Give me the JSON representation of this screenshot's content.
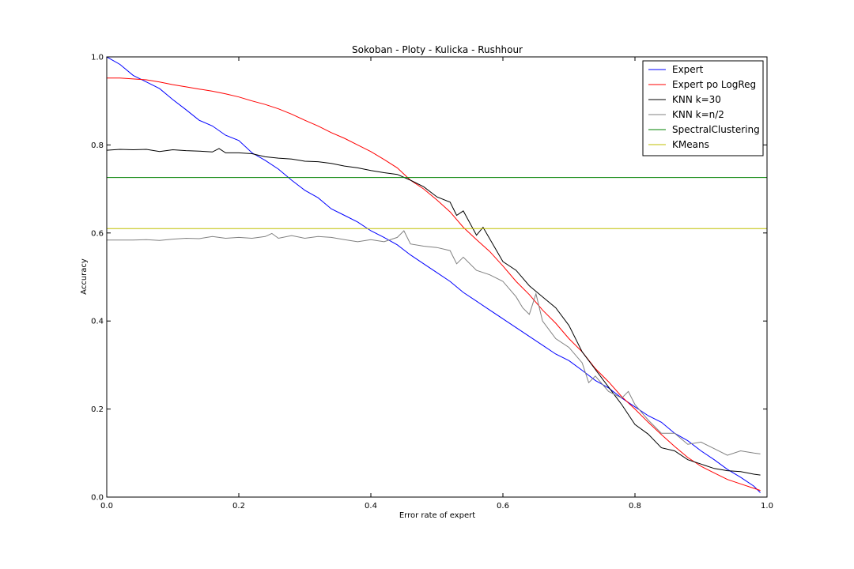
{
  "chart_data": {
    "type": "line",
    "title": "Sokoban - Ploty - Kulicka - Rushhour",
    "xlabel": "Error rate of expert",
    "ylabel": "Accuracy",
    "xlim": [
      0.0,
      1.0
    ],
    "ylim": [
      0.0,
      1.0
    ],
    "xticks": [
      "0.0",
      "0.2",
      "0.4",
      "0.6",
      "0.8",
      "1.0"
    ],
    "yticks": [
      "0.0",
      "0.2",
      "0.4",
      "0.6",
      "0.8",
      "1.0"
    ],
    "grid": false,
    "legend_position": "top-right",
    "series": [
      {
        "name": "Expert",
        "color": "#0000ff",
        "points": [
          [
            0.0,
            1.0
          ],
          [
            0.02,
            0.983
          ],
          [
            0.04,
            0.958
          ],
          [
            0.06,
            0.943
          ],
          [
            0.08,
            0.928
          ],
          [
            0.1,
            0.903
          ],
          [
            0.12,
            0.88
          ],
          [
            0.14,
            0.856
          ],
          [
            0.16,
            0.843
          ],
          [
            0.18,
            0.822
          ],
          [
            0.2,
            0.81
          ],
          [
            0.22,
            0.782
          ],
          [
            0.24,
            0.765
          ],
          [
            0.26,
            0.745
          ],
          [
            0.28,
            0.72
          ],
          [
            0.3,
            0.697
          ],
          [
            0.32,
            0.68
          ],
          [
            0.34,
            0.655
          ],
          [
            0.36,
            0.64
          ],
          [
            0.38,
            0.625
          ],
          [
            0.4,
            0.605
          ],
          [
            0.42,
            0.59
          ],
          [
            0.44,
            0.573
          ],
          [
            0.46,
            0.55
          ],
          [
            0.48,
            0.53
          ],
          [
            0.5,
            0.51
          ],
          [
            0.52,
            0.49
          ],
          [
            0.54,
            0.465
          ],
          [
            0.56,
            0.445
          ],
          [
            0.58,
            0.425
          ],
          [
            0.6,
            0.405
          ],
          [
            0.62,
            0.385
          ],
          [
            0.64,
            0.365
          ],
          [
            0.66,
            0.345
          ],
          [
            0.68,
            0.325
          ],
          [
            0.7,
            0.31
          ],
          [
            0.72,
            0.288
          ],
          [
            0.74,
            0.265
          ],
          [
            0.76,
            0.248
          ],
          [
            0.78,
            0.225
          ],
          [
            0.8,
            0.205
          ],
          [
            0.82,
            0.185
          ],
          [
            0.84,
            0.17
          ],
          [
            0.86,
            0.145
          ],
          [
            0.88,
            0.128
          ],
          [
            0.9,
            0.105
          ],
          [
            0.92,
            0.085
          ],
          [
            0.94,
            0.063
          ],
          [
            0.96,
            0.045
          ],
          [
            0.98,
            0.025
          ],
          [
            0.99,
            0.01
          ]
        ]
      },
      {
        "name": "Expert po LogReg",
        "color": "#ff0000",
        "points": [
          [
            0.0,
            0.952
          ],
          [
            0.02,
            0.952
          ],
          [
            0.04,
            0.95
          ],
          [
            0.06,
            0.948
          ],
          [
            0.08,
            0.943
          ],
          [
            0.1,
            0.937
          ],
          [
            0.12,
            0.932
          ],
          [
            0.14,
            0.927
          ],
          [
            0.16,
            0.922
          ],
          [
            0.18,
            0.916
          ],
          [
            0.2,
            0.909
          ],
          [
            0.22,
            0.9
          ],
          [
            0.24,
            0.892
          ],
          [
            0.26,
            0.882
          ],
          [
            0.28,
            0.87
          ],
          [
            0.3,
            0.856
          ],
          [
            0.32,
            0.843
          ],
          [
            0.34,
            0.828
          ],
          [
            0.36,
            0.815
          ],
          [
            0.38,
            0.8
          ],
          [
            0.4,
            0.785
          ],
          [
            0.42,
            0.767
          ],
          [
            0.44,
            0.748
          ],
          [
            0.46,
            0.72
          ],
          [
            0.48,
            0.7
          ],
          [
            0.5,
            0.675
          ],
          [
            0.52,
            0.648
          ],
          [
            0.54,
            0.613
          ],
          [
            0.56,
            0.585
          ],
          [
            0.58,
            0.558
          ],
          [
            0.6,
            0.525
          ],
          [
            0.62,
            0.49
          ],
          [
            0.64,
            0.46
          ],
          [
            0.66,
            0.425
          ],
          [
            0.68,
            0.395
          ],
          [
            0.7,
            0.36
          ],
          [
            0.72,
            0.33
          ],
          [
            0.74,
            0.292
          ],
          [
            0.76,
            0.262
          ],
          [
            0.78,
            0.228
          ],
          [
            0.8,
            0.2
          ],
          [
            0.82,
            0.17
          ],
          [
            0.84,
            0.142
          ],
          [
            0.86,
            0.115
          ],
          [
            0.88,
            0.09
          ],
          [
            0.9,
            0.07
          ],
          [
            0.92,
            0.055
          ],
          [
            0.94,
            0.04
          ],
          [
            0.96,
            0.03
          ],
          [
            0.98,
            0.02
          ],
          [
            0.99,
            0.015
          ]
        ]
      },
      {
        "name": "KNN k=30",
        "color": "#000000",
        "points": [
          [
            0.0,
            0.788
          ],
          [
            0.02,
            0.79
          ],
          [
            0.04,
            0.789
          ],
          [
            0.06,
            0.79
          ],
          [
            0.08,
            0.785
          ],
          [
            0.1,
            0.789
          ],
          [
            0.12,
            0.787
          ],
          [
            0.14,
            0.786
          ],
          [
            0.16,
            0.784
          ],
          [
            0.17,
            0.792
          ],
          [
            0.18,
            0.782
          ],
          [
            0.2,
            0.782
          ],
          [
            0.22,
            0.78
          ],
          [
            0.24,
            0.773
          ],
          [
            0.26,
            0.77
          ],
          [
            0.28,
            0.768
          ],
          [
            0.3,
            0.763
          ],
          [
            0.32,
            0.762
          ],
          [
            0.34,
            0.758
          ],
          [
            0.36,
            0.752
          ],
          [
            0.38,
            0.748
          ],
          [
            0.4,
            0.742
          ],
          [
            0.42,
            0.737
          ],
          [
            0.44,
            0.733
          ],
          [
            0.46,
            0.72
          ],
          [
            0.48,
            0.705
          ],
          [
            0.5,
            0.682
          ],
          [
            0.52,
            0.67
          ],
          [
            0.53,
            0.64
          ],
          [
            0.54,
            0.65
          ],
          [
            0.56,
            0.595
          ],
          [
            0.57,
            0.613
          ],
          [
            0.6,
            0.535
          ],
          [
            0.62,
            0.515
          ],
          [
            0.64,
            0.48
          ],
          [
            0.66,
            0.455
          ],
          [
            0.68,
            0.43
          ],
          [
            0.7,
            0.39
          ],
          [
            0.72,
            0.33
          ],
          [
            0.74,
            0.29
          ],
          [
            0.76,
            0.25
          ],
          [
            0.78,
            0.21
          ],
          [
            0.8,
            0.165
          ],
          [
            0.82,
            0.143
          ],
          [
            0.84,
            0.112
          ],
          [
            0.86,
            0.105
          ],
          [
            0.88,
            0.085
          ],
          [
            0.9,
            0.075
          ],
          [
            0.92,
            0.065
          ],
          [
            0.94,
            0.06
          ],
          [
            0.96,
            0.058
          ],
          [
            0.98,
            0.052
          ],
          [
            0.99,
            0.05
          ]
        ]
      },
      {
        "name": "KNN k=n/2",
        "color": "#808080",
        "points": [
          [
            0.0,
            0.584
          ],
          [
            0.02,
            0.584
          ],
          [
            0.04,
            0.584
          ],
          [
            0.06,
            0.585
          ],
          [
            0.08,
            0.583
          ],
          [
            0.1,
            0.586
          ],
          [
            0.12,
            0.588
          ],
          [
            0.14,
            0.587
          ],
          [
            0.16,
            0.592
          ],
          [
            0.18,
            0.588
          ],
          [
            0.2,
            0.59
          ],
          [
            0.22,
            0.588
          ],
          [
            0.24,
            0.592
          ],
          [
            0.25,
            0.599
          ],
          [
            0.26,
            0.588
          ],
          [
            0.28,
            0.594
          ],
          [
            0.3,
            0.588
          ],
          [
            0.32,
            0.592
          ],
          [
            0.34,
            0.59
          ],
          [
            0.36,
            0.585
          ],
          [
            0.38,
            0.58
          ],
          [
            0.4,
            0.585
          ],
          [
            0.42,
            0.58
          ],
          [
            0.44,
            0.59
          ],
          [
            0.45,
            0.605
          ],
          [
            0.46,
            0.575
          ],
          [
            0.48,
            0.57
          ],
          [
            0.5,
            0.567
          ],
          [
            0.52,
            0.56
          ],
          [
            0.53,
            0.53
          ],
          [
            0.54,
            0.545
          ],
          [
            0.56,
            0.515
          ],
          [
            0.58,
            0.505
          ],
          [
            0.6,
            0.49
          ],
          [
            0.62,
            0.455
          ],
          [
            0.63,
            0.43
          ],
          [
            0.64,
            0.415
          ],
          [
            0.65,
            0.462
          ],
          [
            0.66,
            0.4
          ],
          [
            0.68,
            0.36
          ],
          [
            0.7,
            0.34
          ],
          [
            0.72,
            0.305
          ],
          [
            0.73,
            0.26
          ],
          [
            0.74,
            0.275
          ],
          [
            0.76,
            0.24
          ],
          [
            0.78,
            0.225
          ],
          [
            0.79,
            0.24
          ],
          [
            0.8,
            0.21
          ],
          [
            0.82,
            0.175
          ],
          [
            0.84,
            0.145
          ],
          [
            0.86,
            0.145
          ],
          [
            0.88,
            0.12
          ],
          [
            0.9,
            0.125
          ],
          [
            0.92,
            0.11
          ],
          [
            0.94,
            0.095
          ],
          [
            0.96,
            0.105
          ],
          [
            0.98,
            0.1
          ],
          [
            0.99,
            0.098
          ]
        ]
      },
      {
        "name": "SpectralClustering",
        "color": "#008000",
        "points": [
          [
            0.0,
            0.726
          ],
          [
            1.0,
            0.726
          ]
        ]
      },
      {
        "name": "KMeans",
        "color": "#bfbf00",
        "points": [
          [
            0.0,
            0.61
          ],
          [
            1.0,
            0.61
          ]
        ]
      }
    ]
  }
}
